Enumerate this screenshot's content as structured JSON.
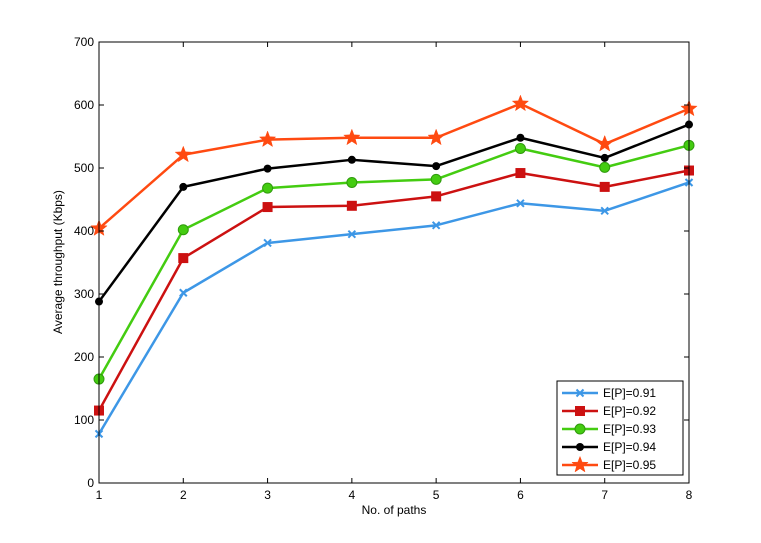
{
  "chart_data": {
    "type": "line",
    "title": "",
    "xlabel": "No. of paths",
    "ylabel": "Average throughput (Kbps)",
    "xlim": [
      1,
      8
    ],
    "ylim": [
      0,
      700
    ],
    "xticks": [
      1,
      2,
      3,
      4,
      5,
      6,
      7,
      8
    ],
    "yticks": [
      0,
      100,
      200,
      300,
      400,
      500,
      600,
      700
    ],
    "grid": false,
    "legend_position": "bottom-right",
    "x": [
      1,
      2,
      3,
      4,
      5,
      6,
      7,
      8
    ],
    "series": [
      {
        "name": "E[P]=0.91",
        "color": "#3d97e6",
        "marker": "x",
        "values": [
          78,
          302,
          381,
          395,
          409,
          444,
          432,
          477
        ]
      },
      {
        "name": "E[P]=0.92",
        "color": "#cc1111",
        "marker": "square",
        "values": [
          115,
          357,
          438,
          440,
          455,
          492,
          470,
          496
        ]
      },
      {
        "name": "E[P]=0.93",
        "color": "#44cc11",
        "marker": "circle",
        "values": [
          165,
          402,
          468,
          477,
          482,
          531,
          501,
          536
        ]
      },
      {
        "name": "E[P]=0.94",
        "color": "#000000",
        "marker": "dot",
        "values": [
          288,
          470,
          499,
          513,
          503,
          548,
          516,
          569
        ]
      },
      {
        "name": "E[P]=0.95",
        "color": "#ff4a11",
        "marker": "star",
        "values": [
          404,
          521,
          545,
          548,
          548,
          602,
          538,
          594
        ]
      }
    ]
  }
}
